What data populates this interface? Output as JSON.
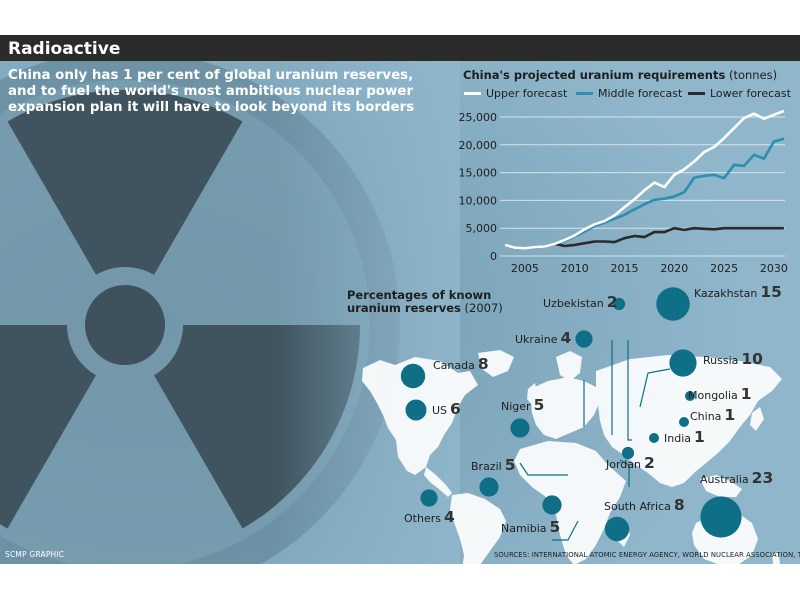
{
  "header": {
    "title": "Radioactive",
    "intro_lines": [
      "China only has 1 per cent of global uranium reserves,",
      "and to fuel the world's most ambitious nuclear power",
      "expansion plan it will have to look beyond its borders"
    ]
  },
  "colors": {
    "panel": "#8fb6cb",
    "title_bar": "#2b2b2b",
    "upper": "#ffffff",
    "middle": "#2a8fb0",
    "lower": "#2b2b2b",
    "bubble": "#0f6f86"
  },
  "chart_data": [
    {
      "type": "line",
      "title": "China's projected uranium requirements",
      "title_unit": "(tonnes)",
      "xlim": [
        2002,
        2032
      ],
      "ylim": [
        0,
        27000
      ],
      "x_ticks": [
        "2005",
        "2010",
        "2015",
        "2020",
        "2025",
        "2030"
      ],
      "y_ticks": [
        "0",
        "5,000",
        "10,000",
        "15,000",
        "20,000",
        "25,000"
      ],
      "grid": "horizontal",
      "legend_position": "top",
      "x": [
        2003,
        2004,
        2005,
        2006,
        2007,
        2008,
        2009,
        2010,
        2011,
        2012,
        2013,
        2014,
        2015,
        2016,
        2017,
        2018,
        2019,
        2020,
        2021,
        2022,
        2023,
        2024,
        2025,
        2026,
        2027,
        2028,
        2029,
        2030,
        2031
      ],
      "series": [
        {
          "name": "Upper forecast",
          "color_key": "upper",
          "values": [
            2000,
            1500,
            1400,
            1600,
            1700,
            2200,
            2900,
            3700,
            4800,
            5700,
            6300,
            7300,
            8800,
            10200,
            11800,
            13200,
            12400,
            14600,
            15600,
            17000,
            18700,
            19600,
            21200,
            23000,
            24800,
            25600,
            24700,
            25400,
            26100
          ]
        },
        {
          "name": "Middle forecast",
          "color_key": "middle",
          "values": [
            2000,
            1500,
            1400,
            1600,
            1700,
            2200,
            2700,
            3500,
            4400,
            5400,
            6000,
            6700,
            7400,
            8400,
            9300,
            10100,
            10300,
            10700,
            11500,
            14100,
            14400,
            14600,
            14000,
            16400,
            16200,
            18200,
            17500,
            20600,
            21100
          ]
        },
        {
          "name": "Lower forecast",
          "color_key": "lower",
          "values": [
            2000,
            1500,
            1400,
            1600,
            1700,
            2200,
            1800,
            2000,
            2300,
            2600,
            2600,
            2500,
            3200,
            3600,
            3400,
            4300,
            4300,
            5000,
            4700,
            5000,
            4900,
            4800,
            5000,
            5000,
            5000,
            5000,
            5000,
            5000,
            5000
          ]
        }
      ]
    },
    {
      "type": "bubble",
      "title": "Percentages of known uranium reserves",
      "title_year": "(2007)",
      "categories": [
        "Kazakhstan",
        "Uzbekistan",
        "Ukraine",
        "Canada",
        "Russia",
        "Mongolia",
        "US",
        "China",
        "Niger",
        "India",
        "Jordan",
        "Brazil",
        "Australia",
        "South Africa",
        "Namibia",
        "Others"
      ],
      "values": [
        15,
        2,
        4,
        8,
        10,
        1,
        6,
        1,
        5,
        1,
        2,
        5,
        23,
        8,
        5,
        4
      ]
    }
  ],
  "map_labels": [
    {
      "id": "kazakhstan",
      "name": "Kazakhstan",
      "value": "15"
    },
    {
      "id": "uzbekistan",
      "name": "Uzbekistan",
      "value": "2"
    },
    {
      "id": "ukraine",
      "name": "Ukraine",
      "value": "4"
    },
    {
      "id": "canada",
      "name": "Canada",
      "value": "8"
    },
    {
      "id": "russia",
      "name": "Russia",
      "value": "10"
    },
    {
      "id": "mongolia",
      "name": "Mongolia",
      "value": "1"
    },
    {
      "id": "us",
      "name": "US",
      "value": "6"
    },
    {
      "id": "china",
      "name": "China",
      "value": "1"
    },
    {
      "id": "niger",
      "name": "Niger",
      "value": "5"
    },
    {
      "id": "india",
      "name": "India",
      "value": "1"
    },
    {
      "id": "jordan",
      "name": "Jordan",
      "value": "2"
    },
    {
      "id": "brazil",
      "name": "Brazil",
      "value": "5"
    },
    {
      "id": "australia",
      "name": "Australia",
      "value": "23"
    },
    {
      "id": "south_africa",
      "name": "South Africa",
      "value": "8"
    },
    {
      "id": "namibia",
      "name": "Namibia",
      "value": "5"
    },
    {
      "id": "others",
      "name": "Others",
      "value": "4"
    }
  ],
  "footer": {
    "credit": "SCMP GRAPHIC",
    "sources": "SOURCES: INTERNATIONAL ATOMIC ENERGY AGENCY, WORLD NUCLEAR ASSOCIATION, TRADETECH"
  }
}
